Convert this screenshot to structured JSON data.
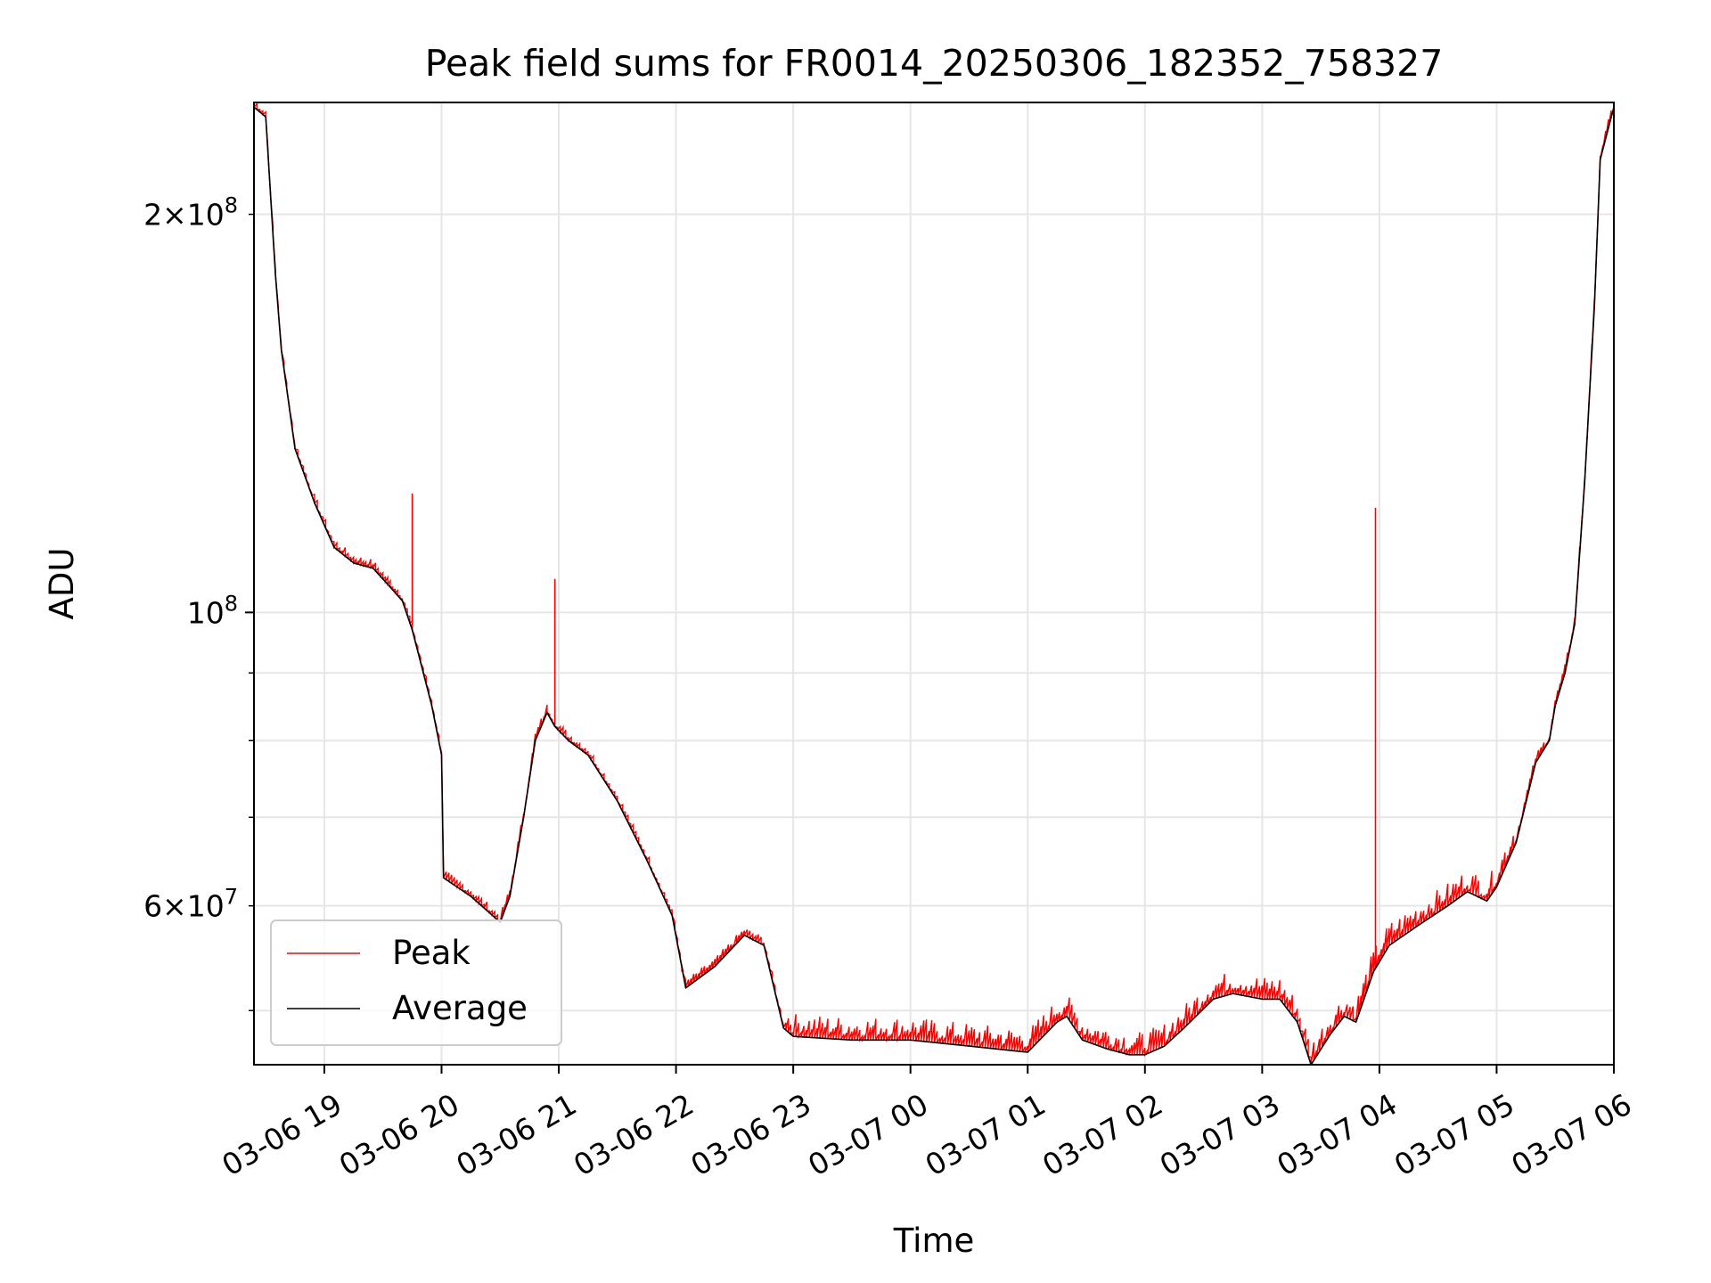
{
  "chart_data": {
    "type": "line",
    "title": "Peak field sums for FR0014_20250306_182352_758327",
    "xlabel": "Time",
    "ylabel": "ADU",
    "x_axis": {
      "type": "time",
      "start": "2025-03-06 18:24",
      "end": "2025-03-07 06:00",
      "tick_labels": [
        "03-06 19",
        "03-06 20",
        "03-06 21",
        "03-06 22",
        "03-06 23",
        "03-07 00",
        "03-07 01",
        "03-07 02",
        "03-07 03",
        "03-07 04",
        "03-07 05",
        "03-07 06"
      ],
      "tick_hours": [
        0.6,
        1.6,
        2.6,
        3.6,
        4.6,
        5.6,
        6.6,
        7.6,
        8.6,
        9.6,
        10.6,
        11.6
      ]
    },
    "y_axis": {
      "scale": "log",
      "range": [
        45500000,
        243000000
      ],
      "major_ticks": [
        100000000
      ],
      "major_tick_labels": [
        "10^8"
      ],
      "labeled_minor_ticks": [
        200000000,
        60000000
      ],
      "labeled_minor_tick_labels": [
        "2×10^8",
        "6×10^7"
      ],
      "gridlines": [
        50000000,
        60000000,
        70000000,
        80000000,
        90000000,
        100000000,
        200000000
      ]
    },
    "grid": true,
    "legend_position": "lower-left",
    "series": [
      {
        "name": "Peak",
        "color": "#ff0000",
        "note_spikes": true,
        "spikes": [
          {
            "x": "2025-03-06 19:45",
            "y": 123000000
          },
          {
            "x": "2025-03-06 20:58",
            "y": 106000000
          },
          {
            "x": "2025-03-06 22:03",
            "y": 53500000
          },
          {
            "x": "2025-03-07 03:58",
            "y": 120000000
          }
        ]
      },
      {
        "name": "Average",
        "color": "#000000",
        "x": [
          "2025-03-06 18:24",
          "2025-03-06 18:30",
          "2025-03-06 18:35",
          "2025-03-06 18:38",
          "2025-03-06 18:45",
          "2025-03-06 18:55",
          "2025-03-06 19:05",
          "2025-03-06 19:15",
          "2025-03-06 19:20",
          "2025-03-06 19:25",
          "2025-03-06 19:30",
          "2025-03-06 19:35",
          "2025-03-06 19:40",
          "2025-03-06 19:45",
          "2025-03-06 19:55",
          "2025-03-06 20:00",
          "2025-03-06 20:01",
          "2025-03-06 20:15",
          "2025-03-06 20:30",
          "2025-03-06 20:35",
          "2025-03-06 20:42",
          "2025-03-06 20:48",
          "2025-03-06 20:54",
          "2025-03-06 20:58",
          "2025-03-06 21:05",
          "2025-03-06 21:15",
          "2025-03-06 21:30",
          "2025-03-06 21:45",
          "2025-03-06 21:58",
          "2025-03-06 22:05",
          "2025-03-06 22:20",
          "2025-03-06 22:35",
          "2025-03-06 22:45",
          "2025-03-06 22:55",
          "2025-03-06 23:00",
          "2025-03-06 23:30",
          "2025-03-07 00:00",
          "2025-03-07 00:30",
          "2025-03-07 01:00",
          "2025-03-07 01:15",
          "2025-03-07 01:20",
          "2025-03-07 01:28",
          "2025-03-07 01:40",
          "2025-03-07 01:52",
          "2025-03-07 02:00",
          "2025-03-07 02:10",
          "2025-03-07 02:20",
          "2025-03-07 02:35",
          "2025-03-07 02:45",
          "2025-03-07 03:00",
          "2025-03-07 03:09",
          "2025-03-07 03:18",
          "2025-03-07 03:25",
          "2025-03-07 03:35",
          "2025-03-07 03:42",
          "2025-03-07 03:48",
          "2025-03-07 03:57",
          "2025-03-07 04:05",
          "2025-03-07 04:20",
          "2025-03-07 04:35",
          "2025-03-07 04:45",
          "2025-03-07 04:55",
          "2025-03-07 05:00",
          "2025-03-07 05:10",
          "2025-03-07 05:20",
          "2025-03-07 05:27",
          "2025-03-07 05:30",
          "2025-03-07 05:35",
          "2025-03-07 05:40",
          "2025-03-07 05:45",
          "2025-03-07 05:50",
          "2025-03-07 05:53",
          "2025-03-07 06:00"
        ],
        "y": [
          241000000,
          237000000,
          180000000,
          158000000,
          133000000,
          121000000,
          112000000,
          109000000,
          108500000,
          108000000,
          106000000,
          104000000,
          102000000,
          97000000,
          85000000,
          78000000,
          63000000,
          61000000,
          58300000,
          61000000,
          70000000,
          80000000,
          84000000,
          82000000,
          80000000,
          78000000,
          72000000,
          65000000,
          59000000,
          52000000,
          54000000,
          57000000,
          56000000,
          48500000,
          47800000,
          47500000,
          47500000,
          47000000,
          46500000,
          49000000,
          49500000,
          47500000,
          46800000,
          46300000,
          46300000,
          47000000,
          48500000,
          51000000,
          51500000,
          51000000,
          51000000,
          49000000,
          45500000,
          48000000,
          49500000,
          49000000,
          53500000,
          56000000,
          58000000,
          60000000,
          61500000,
          60500000,
          62000000,
          67000000,
          77000000,
          80000000,
          85000000,
          90000000,
          98000000,
          125000000,
          170000000,
          220000000,
          241000000
        ]
      }
    ],
    "legend": [
      {
        "name": "Peak",
        "color": "#ff0000"
      },
      {
        "name": "Average",
        "color": "#000000"
      }
    ]
  }
}
